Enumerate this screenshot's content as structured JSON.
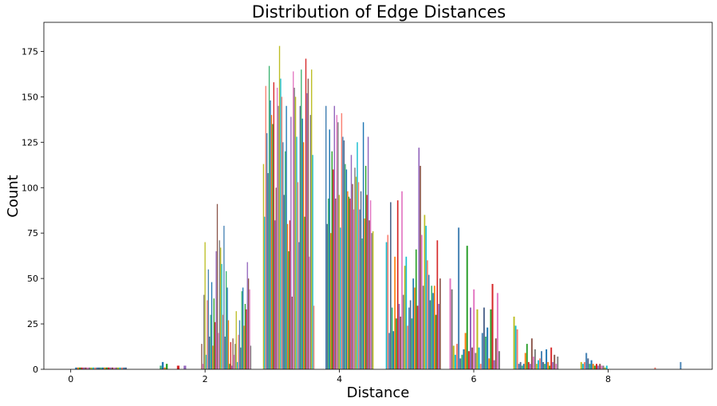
{
  "chart_data": {
    "type": "bar",
    "title": "Distribution of Edge Distances",
    "xlabel": "Distance",
    "ylabel": "Count",
    "xlim": [
      -0.4,
      9.55
    ],
    "ylim": [
      0,
      191
    ],
    "xticks": [
      0,
      2,
      4,
      6,
      8
    ],
    "yticks": [
      0,
      25,
      50,
      75,
      100,
      125,
      150,
      175
    ],
    "grid": false,
    "legend": "none",
    "palette": [
      "#1f77b4",
      "#ff7f0e",
      "#2ca02c",
      "#d62728",
      "#9467bd",
      "#8c564b",
      "#e377c2",
      "#7f7f7f",
      "#bcbd22",
      "#17becf",
      "#fa8072",
      "#4682b4",
      "#556b8f",
      "#3cb371"
    ],
    "groups": [
      {
        "range": [
          0.08,
          0.82
        ],
        "values": [
          1,
          1,
          1,
          1,
          1,
          1,
          1,
          1,
          1,
          1,
          1,
          1,
          1,
          1,
          1,
          1,
          1,
          1,
          1,
          1,
          1,
          1,
          1,
          1,
          1,
          1,
          1
        ]
      },
      {
        "range": [
          1.34,
          1.43
        ],
        "values": [
          2,
          4,
          1,
          3
        ]
      },
      {
        "range": [
          1.6,
          1.7
        ],
        "values": [
          2,
          2
        ]
      },
      {
        "range": [
          1.95,
          2.68
        ],
        "values": [
          14,
          3,
          41,
          70,
          8,
          38,
          55,
          18,
          30,
          48,
          13,
          39,
          26,
          65,
          91,
          20,
          71,
          67,
          58,
          30,
          79,
          18,
          54,
          45,
          27,
          3,
          15,
          2,
          17,
          8,
          14,
          32,
          4,
          19,
          27,
          12,
          43,
          45,
          24,
          36,
          33,
          59,
          50,
          44,
          13
        ]
      },
      {
        "range": [
          2.87,
          3.62
        ],
        "values": [
          113,
          84,
          156,
          130,
          108,
          167,
          148,
          140,
          135,
          158,
          82,
          100,
          155,
          145,
          178,
          160,
          150,
          125,
          96,
          120,
          145,
          80,
          65,
          82,
          139,
          40,
          164,
          155,
          150,
          128,
          103,
          70,
          145,
          165,
          138,
          125,
          84,
          171,
          152,
          160,
          62,
          140,
          165,
          118,
          35
        ]
      },
      {
        "range": [
          3.8,
          4.5
        ],
        "values": [
          145,
          80,
          94,
          132,
          75,
          120,
          110,
          145,
          94,
          140,
          136,
          96,
          78,
          141,
          128,
          126,
          113,
          110,
          98,
          95,
          94,
          118,
          102,
          88,
          111,
          106,
          125,
          103,
          88,
          98,
          72,
          136,
          83,
          112,
          96,
          128,
          82,
          93,
          75,
          76
        ]
      },
      {
        "range": [
          4.7,
          5.5
        ],
        "values": [
          70,
          74,
          20,
          92,
          34,
          21,
          62,
          28,
          93,
          36,
          29,
          98,
          41,
          57,
          62,
          24,
          34,
          38,
          28,
          50,
          45,
          66,
          35,
          122,
          112,
          74,
          46,
          85,
          79,
          60,
          52,
          38,
          46,
          42,
          46,
          30,
          71,
          36,
          50
        ]
      },
      {
        "range": [
          5.65,
          6.38
        ],
        "values": [
          50,
          44,
          13,
          8,
          14,
          78,
          6,
          8,
          11,
          20,
          68,
          10,
          34,
          12,
          44,
          9,
          33,
          12,
          3,
          20,
          34,
          18,
          23,
          6,
          33,
          47,
          5,
          17,
          42,
          10
        ]
      },
      {
        "range": [
          6.6,
          7.25
        ],
        "values": [
          29,
          24,
          22,
          3,
          4,
          2,
          3,
          9,
          14,
          4,
          3,
          17,
          7,
          11,
          3,
          5,
          6,
          10,
          4,
          3,
          11,
          4,
          2,
          12,
          4,
          8,
          3,
          7
        ]
      },
      {
        "range": [
          7.6,
          7.98
        ],
        "values": [
          4,
          3,
          4,
          9,
          6,
          3,
          5,
          3,
          2,
          3,
          2,
          3,
          2,
          2,
          1,
          2
        ]
      },
      {
        "range": [
          8.7,
          8.75
        ],
        "values": [
          1
        ]
      },
      {
        "range": [
          9.08,
          9.1
        ],
        "values": [
          4
        ]
      }
    ]
  }
}
